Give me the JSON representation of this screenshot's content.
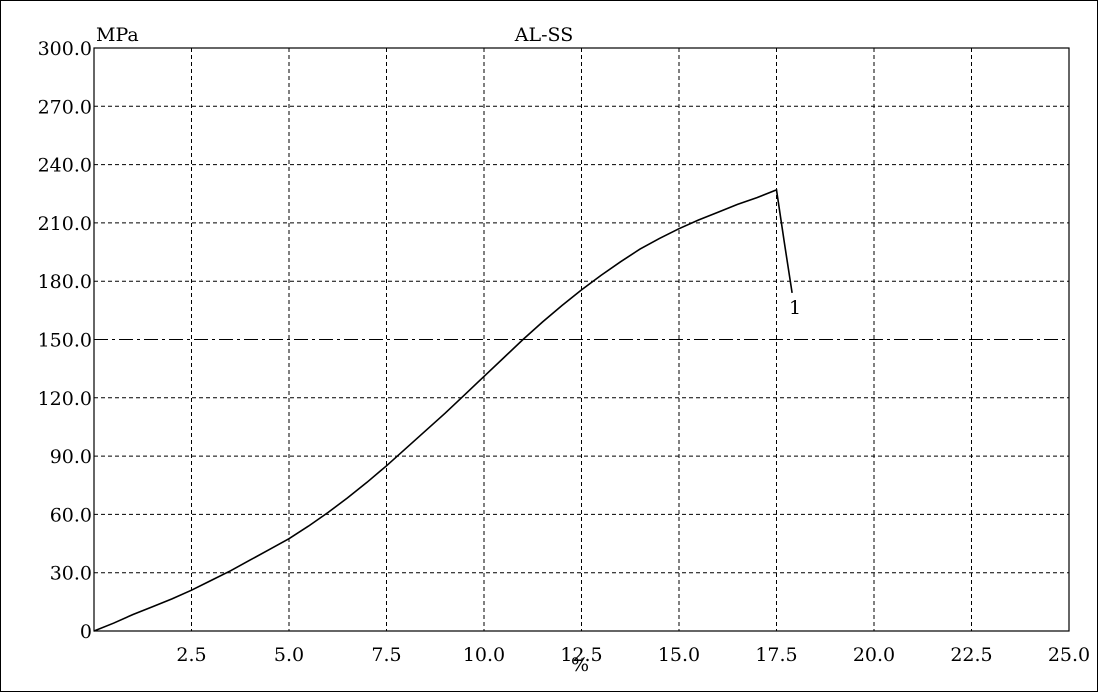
{
  "chart_data": {
    "type": "line",
    "title": "AL-SS",
    "xlabel": "%",
    "ylabel": "MPa",
    "xlim": [
      0,
      25
    ],
    "ylim": [
      0,
      300
    ],
    "x_ticks": [
      2.5,
      5.0,
      7.5,
      10.0,
      12.5,
      15.0,
      17.5,
      20.0,
      22.5,
      25.0
    ],
    "x_tick_labels": [
      "2.5",
      "5.0",
      "7.5",
      "10.0",
      "12.5",
      "15.0",
      "17.5",
      "20.0",
      "22.5",
      "25.0"
    ],
    "y_ticks": [
      0,
      30,
      60,
      90,
      120,
      150,
      180,
      210,
      240,
      270,
      300
    ],
    "y_tick_labels": [
      "0",
      "30.0",
      "60.0",
      "90.0",
      "120.0",
      "150.0",
      "180.0",
      "210.0",
      "240.0",
      "270.0",
      "300.0"
    ],
    "grid": true,
    "colors": {
      "line": "#000000",
      "grid": "#000000",
      "background": "#ffffff"
    },
    "series": [
      {
        "name": "1",
        "x": [
          0,
          0.5,
          1.0,
          1.5,
          2.0,
          2.5,
          3.0,
          3.5,
          4.0,
          4.5,
          5.0,
          5.5,
          6.0,
          6.5,
          7.0,
          7.5,
          8.0,
          8.5,
          9.0,
          9.5,
          10.0,
          10.5,
          11.0,
          11.5,
          12.0,
          12.5,
          13.0,
          13.5,
          14.0,
          14.5,
          15.0,
          15.5,
          16.0,
          16.5,
          17.0,
          17.5,
          17.7,
          17.9
        ],
        "y": [
          0,
          4,
          8.5,
          12.5,
          16.5,
          21,
          26,
          31,
          36.5,
          42,
          47.5,
          54,
          61,
          68.5,
          76.5,
          85,
          94,
          103,
          112,
          121.5,
          131,
          140.5,
          150,
          159,
          167.5,
          175.5,
          183,
          190,
          196.5,
          202,
          207,
          211.5,
          215.5,
          219.5,
          223,
          227,
          200,
          174
        ]
      }
    ]
  }
}
